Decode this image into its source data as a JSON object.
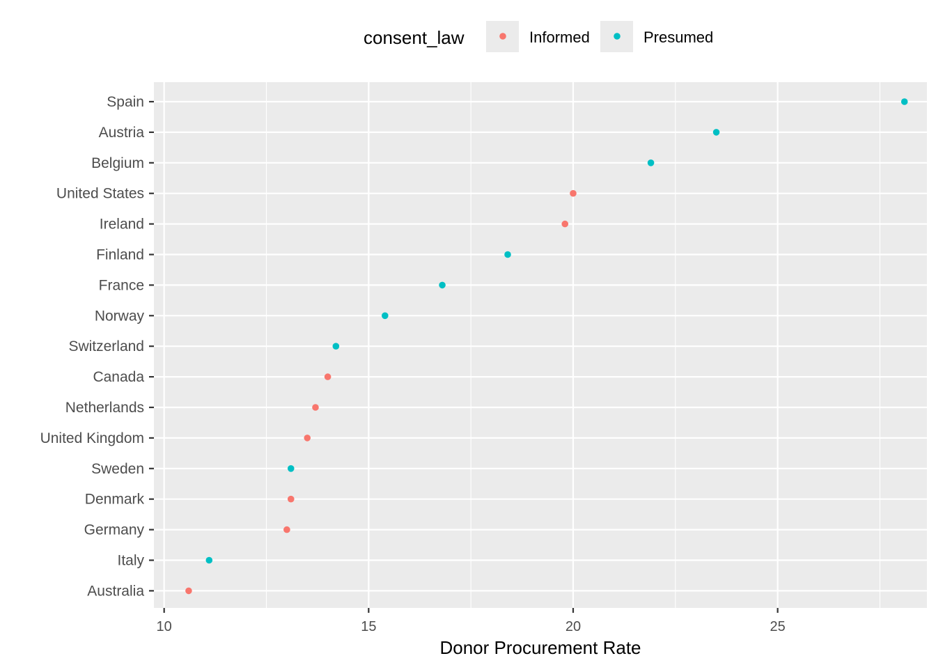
{
  "chart_data": {
    "type": "scatter",
    "title": "",
    "xlabel": "Donor Procurement Rate",
    "ylabel": "",
    "xlim": [
      9.75,
      28.65
    ],
    "x_ticks": [
      10,
      15,
      20,
      25
    ],
    "x_tick_labels": [
      "10",
      "15",
      "20",
      "25"
    ],
    "grid": true,
    "legend_position": "top",
    "legend": {
      "title": "consent_law",
      "entries": [
        {
          "label": "Informed",
          "color": "#F8766D"
        },
        {
          "label": "Presumed",
          "color": "#00BFC4"
        }
      ]
    },
    "categories": [
      "Spain",
      "Austria",
      "Belgium",
      "United States",
      "Ireland",
      "Finland",
      "France",
      "Norway",
      "Switzerland",
      "Canada",
      "Netherlands",
      "United Kingdom",
      "Sweden",
      "Denmark",
      "Germany",
      "Italy",
      "Australia"
    ],
    "points": [
      {
        "country": "Spain",
        "value": 28.1,
        "consent_law": "Presumed"
      },
      {
        "country": "Austria",
        "value": 23.5,
        "consent_law": "Presumed"
      },
      {
        "country": "Belgium",
        "value": 21.9,
        "consent_law": "Presumed"
      },
      {
        "country": "United States",
        "value": 20.0,
        "consent_law": "Informed"
      },
      {
        "country": "Ireland",
        "value": 19.8,
        "consent_law": "Informed"
      },
      {
        "country": "Finland",
        "value": 18.4,
        "consent_law": "Presumed"
      },
      {
        "country": "France",
        "value": 16.8,
        "consent_law": "Presumed"
      },
      {
        "country": "Norway",
        "value": 15.4,
        "consent_law": "Presumed"
      },
      {
        "country": "Switzerland",
        "value": 14.2,
        "consent_law": "Presumed"
      },
      {
        "country": "Canada",
        "value": 14.0,
        "consent_law": "Informed"
      },
      {
        "country": "Netherlands",
        "value": 13.7,
        "consent_law": "Informed"
      },
      {
        "country": "United Kingdom",
        "value": 13.5,
        "consent_law": "Informed"
      },
      {
        "country": "Sweden",
        "value": 13.1,
        "consent_law": "Presumed"
      },
      {
        "country": "Denmark",
        "value": 13.1,
        "consent_law": "Informed"
      },
      {
        "country": "Germany",
        "value": 13.0,
        "consent_law": "Informed"
      },
      {
        "country": "Italy",
        "value": 11.1,
        "consent_law": "Presumed"
      },
      {
        "country": "Australia",
        "value": 10.6,
        "consent_law": "Informed"
      }
    ]
  }
}
